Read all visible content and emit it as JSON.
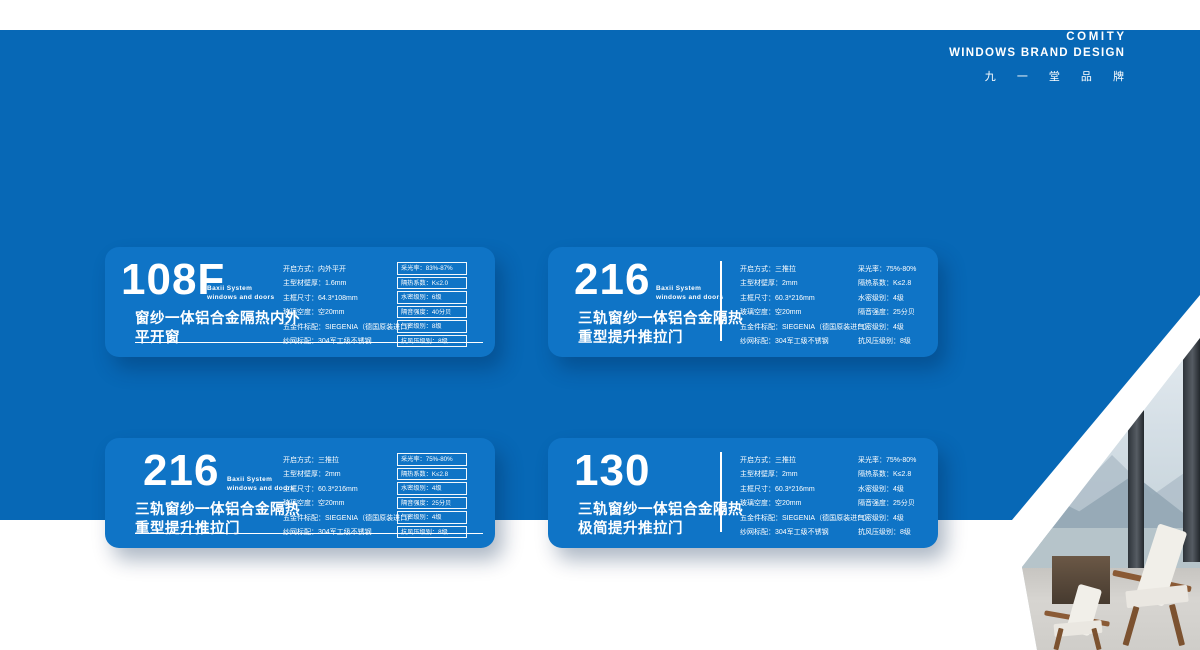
{
  "colors": {
    "background_blue": "#0768b6",
    "card_blue": "#0f74c6",
    "text_white": "#ffffff"
  },
  "header": {
    "brand": "COMITY",
    "subtitle": "WINDOWS BRAND DESIGN",
    "brand_cn": "九 一 堂 品 牌"
  },
  "cards": [
    {
      "model": "108F",
      "system_line1": "Baxii System",
      "system_line2": "windows and doors",
      "title_line1": "窗纱一体铝合金隔热内外",
      "title_line2": "平开窗",
      "specs": [
        "开启方式：内外平开",
        "主型材壁厚：1.6mm",
        "主框尺寸：64.3*108mm",
        "玻璃空度：空20mm",
        "五金件标配：SIEGENIA（德国原装进口）",
        "纱网标配：304军工级不锈钢"
      ],
      "metrics": [
        "采光率：83%-87%",
        "隔热系数：K≤2.0",
        "水密级别：6级",
        "隔音强度：40分贝",
        "气密级别：8级",
        "抗风压级别：8级"
      ]
    },
    {
      "model": "216",
      "system_line1": "Baxii System",
      "system_line2": "windows and doors",
      "title_line1": "三轨窗纱一体铝合金隔热",
      "title_line2": "重型提升推拉门",
      "specs": [
        "开启方式：三推拉",
        "主型材壁厚：2mm",
        "主框尺寸：60.3*216mm",
        "玻璃空度：空20mm",
        "五金件标配：SIEGENIA（德国原装进口）",
        "纱网标配：304军工级不锈钢"
      ],
      "metrics": [
        "采光率：75%-80%",
        "隔热系数：K≤2.8",
        "水密级别：4级",
        "隔音强度：25分贝",
        "气密级别：4级",
        "抗风压级别：8级"
      ]
    },
    {
      "model": "216",
      "system_line1": "Baxii System",
      "system_line2": "windows and doors",
      "title_line1": "三轨窗纱一体铝合金隔热",
      "title_line2": "重型提升推拉门",
      "specs": [
        "开启方式：三推拉",
        "主型材壁厚：2mm",
        "主框尺寸：60.3*216mm",
        "玻璃空度：空20mm",
        "五金件标配：SIEGENIA（德国原装进口）",
        "纱网标配：304军工级不锈钢"
      ],
      "metrics": [
        "采光率：75%-80%",
        "隔热系数：K≤2.8",
        "水密级别：4级",
        "隔音强度：25分贝",
        "气密级别：4级",
        "抗风压级别：8级"
      ]
    },
    {
      "model": "130",
      "system_line1": "",
      "system_line2": "",
      "title_line1": "三轨窗纱一体铝合金隔热",
      "title_line2": "极简提升推拉门",
      "specs": [
        "开启方式：三推拉",
        "主型材壁厚：2mm",
        "主框尺寸：60.3*216mm",
        "玻璃空度：空20mm",
        "五金件标配：SIEGENIA（德国原装进口）",
        "纱网标配：304军工级不锈钢"
      ],
      "metrics": [
        "采光率：75%-80%",
        "隔热系数：K≤2.8",
        "水密级别：4级",
        "隔音强度：25分贝",
        "气密级别：4级",
        "抗风压级别：8级"
      ]
    }
  ]
}
